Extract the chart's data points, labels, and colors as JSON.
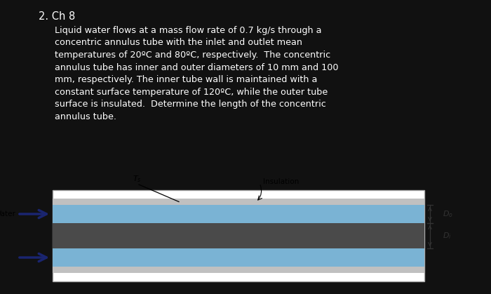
{
  "bg_color": "#111111",
  "title": "2. Ch 8",
  "paragraph_lines": [
    "Liquid water flows at a mass flow rate of 0.7 kg/s through a",
    "concentric annulus tube with the inlet and outlet mean",
    "temperatures of 20ºC and 80ºC, respectively.  The concentric",
    "annulus tube has inner and outer diameters of 10 mm and 100",
    "mm, respectively. The inner tube wall is maintained with a",
    "constant surface temperature of 120ºC, while the outer tube",
    "surface is insulated.  Determine the length of the concentric",
    "annulus tube."
  ],
  "text_color": "#ffffff",
  "diagram": {
    "box_facecolor": "#ffffff",
    "box_edgecolor": "#aaaaaa",
    "insulation_color": "#c0c0c0",
    "water_color": "#7ab3d4",
    "inner_tube_color": "#4a4a4a",
    "arrow_color": "#1a2570",
    "label_color": "#000000",
    "dim_color": "#333333"
  }
}
